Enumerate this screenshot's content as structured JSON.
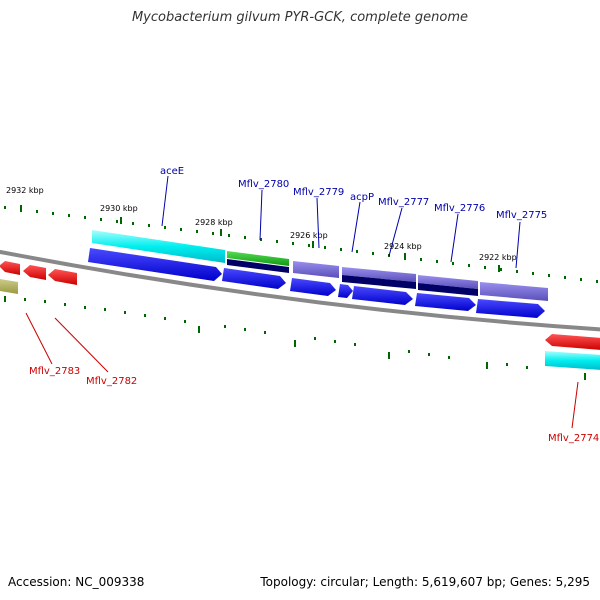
{
  "title": "Mycobacterium gilvum PYR-GCK, complete genome",
  "accession": "Accession: NC_009338",
  "summary": "Topology: circular; Length: 5,619,607 bp; Genes: 5,295",
  "kbp_labels": [
    "2932 kbp",
    "2930 kbp",
    "2928 kbp",
    "2926 kbp",
    "2924 kbp",
    "2922 kbp"
  ],
  "genes_top": [
    {
      "label": "aceE",
      "color": "#0000aa"
    },
    {
      "label": "Mflv_2780",
      "color": "#0000aa"
    },
    {
      "label": "Mflv_2779",
      "color": "#0000aa"
    },
    {
      "label": "acpP",
      "color": "#0000aa"
    },
    {
      "label": "Mflv_2777",
      "color": "#0000aa"
    },
    {
      "label": "Mflv_2776",
      "color": "#0000aa"
    },
    {
      "label": "Mflv_2775",
      "color": "#0000aa"
    }
  ],
  "genes_bottom": [
    {
      "label": "Mflv_2783",
      "color": "#cc0000"
    },
    {
      "label": "Mflv_2782",
      "color": "#cc0000"
    },
    {
      "label": "Mflv_2774",
      "color": "#cc0000"
    }
  ],
  "colors": {
    "forward_gene": "#0000ee",
    "reverse_gene": "#ee0000",
    "cyan_feature": "#00eeee",
    "green_feature": "#22bb22",
    "purple_feature": "#7b6fd8",
    "navy_feature": "#000066",
    "olive_feature": "#aaa855",
    "backbone": "#888888",
    "ticks": "#006600"
  }
}
